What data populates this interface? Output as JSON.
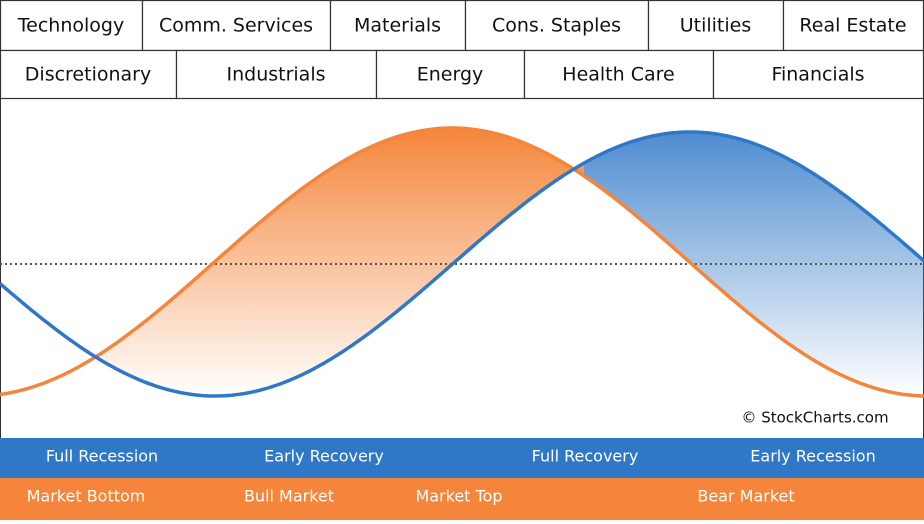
{
  "sectors_row_1": [
    "Technology",
    "Comm. Services",
    "Materials",
    "Cons. Staples",
    "Utilities",
    "Real Estate"
  ],
  "sectors_row_2": [
    "Discretionary",
    "Industrials",
    "Energy",
    "Health Care",
    "Financials"
  ],
  "economy_phases": [
    "Full Recession",
    "Early Recovery",
    "Full Recovery",
    "Early Recession"
  ],
  "market_phases": [
    "Market Bottom",
    "Bull Market",
    "Market Top",
    "Bear Market"
  ],
  "copyright": "© StockCharts.com"
}
